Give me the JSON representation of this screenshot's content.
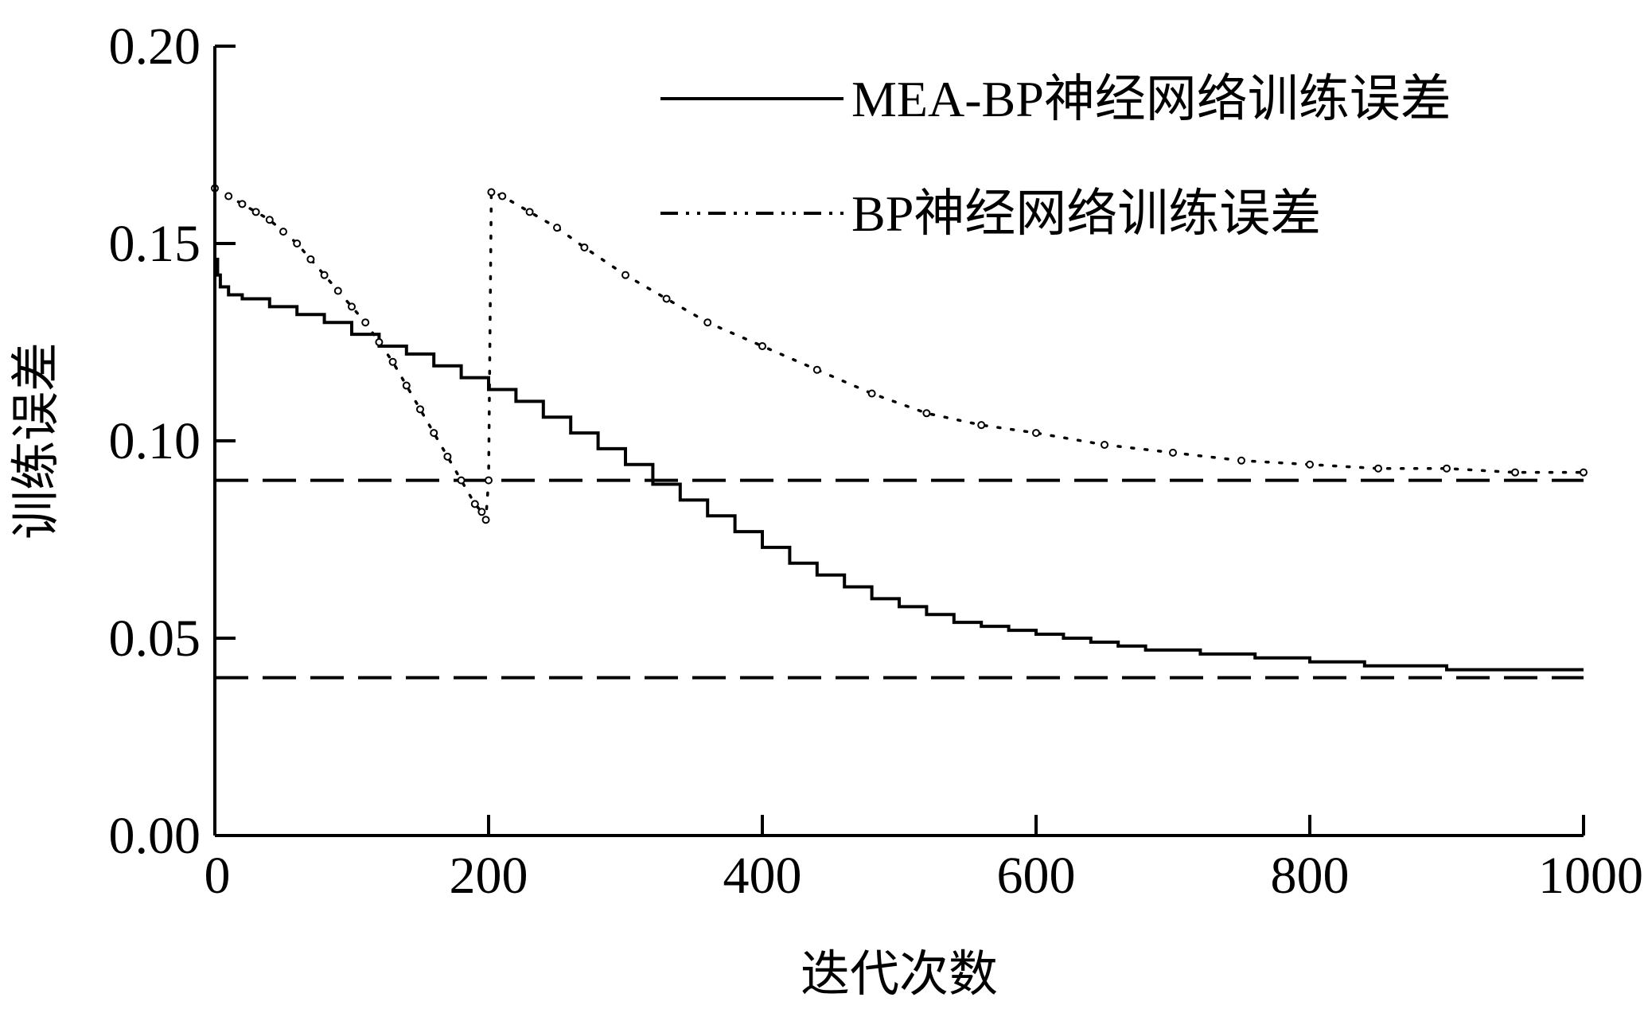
{
  "chart_data": {
    "type": "line",
    "title": "",
    "xlabel": "迭代次数",
    "ylabel": "训练误差",
    "xlim": [
      0,
      1000
    ],
    "ylim": [
      0,
      0.2
    ],
    "x_ticks": [
      "0",
      "200",
      "400",
      "600",
      "800",
      "1000"
    ],
    "y_ticks": [
      "0.00",
      "0.05",
      "0.10",
      "0.15",
      "0.20"
    ],
    "grid": false,
    "legend_position": "top-right",
    "series": [
      {
        "name": "MEA-BP神经网络训练误差",
        "style": "solid",
        "color": "#000000",
        "x": [
          0,
          2,
          4,
          10,
          20,
          40,
          60,
          80,
          100,
          120,
          140,
          160,
          180,
          200,
          220,
          240,
          260,
          280,
          300,
          320,
          340,
          360,
          380,
          400,
          420,
          440,
          460,
          480,
          500,
          520,
          540,
          560,
          580,
          600,
          620,
          640,
          660,
          680,
          700,
          720,
          740,
          760,
          780,
          800,
          820,
          840,
          860,
          880,
          900,
          920,
          940,
          960,
          980,
          1000
        ],
        "y": [
          0.146,
          0.142,
          0.139,
          0.137,
          0.136,
          0.134,
          0.132,
          0.13,
          0.127,
          0.124,
          0.122,
          0.119,
          0.116,
          0.113,
          0.11,
          0.106,
          0.102,
          0.098,
          0.094,
          0.089,
          0.085,
          0.081,
          0.077,
          0.073,
          0.069,
          0.066,
          0.063,
          0.06,
          0.058,
          0.056,
          0.054,
          0.053,
          0.052,
          0.051,
          0.05,
          0.049,
          0.048,
          0.047,
          0.047,
          0.046,
          0.046,
          0.045,
          0.045,
          0.044,
          0.044,
          0.043,
          0.043,
          0.043,
          0.042,
          0.042,
          0.042,
          0.042,
          0.042,
          0.042
        ]
      },
      {
        "name": "BP神经网络训练误差",
        "style": "dash-dot-dot",
        "color": "#000000",
        "x": [
          0,
          10,
          20,
          30,
          40,
          50,
          60,
          70,
          80,
          90,
          100,
          110,
          120,
          130,
          140,
          150,
          160,
          170,
          180,
          190,
          195,
          198,
          200,
          202,
          210,
          230,
          250,
          270,
          300,
          330,
          360,
          400,
          440,
          480,
          520,
          560,
          600,
          650,
          700,
          750,
          800,
          850,
          900,
          950,
          1000
        ],
        "y": [
          0.164,
          0.162,
          0.16,
          0.158,
          0.156,
          0.153,
          0.15,
          0.146,
          0.142,
          0.138,
          0.134,
          0.13,
          0.125,
          0.12,
          0.114,
          0.108,
          0.102,
          0.096,
          0.09,
          0.084,
          0.082,
          0.08,
          0.09,
          0.163,
          0.162,
          0.158,
          0.154,
          0.149,
          0.142,
          0.136,
          0.13,
          0.124,
          0.118,
          0.112,
          0.107,
          0.104,
          0.102,
          0.099,
          0.097,
          0.095,
          0.094,
          0.093,
          0.093,
          0.092,
          0.092
        ]
      }
    ],
    "reference_lines": [
      {
        "y": 0.09,
        "style": "dashed"
      },
      {
        "y": 0.04,
        "style": "dashed"
      }
    ]
  }
}
